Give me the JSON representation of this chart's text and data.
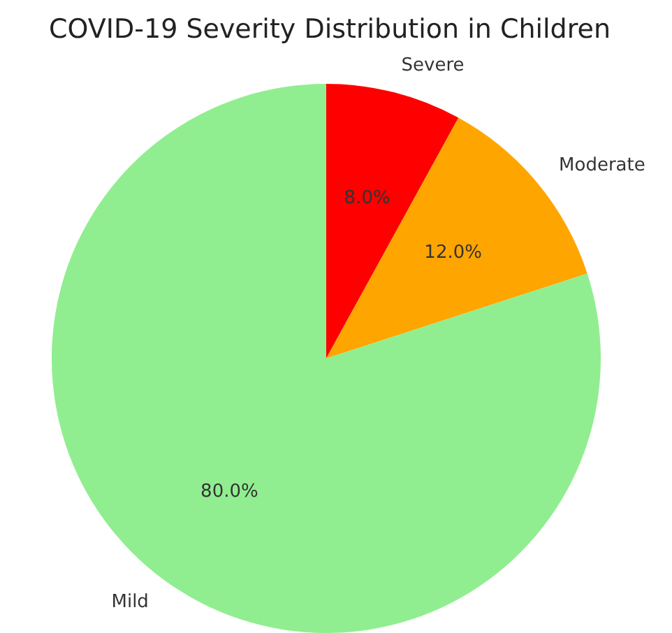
{
  "chart_data": {
    "type": "pie",
    "title": "COVID-19 Severity Distribution in Children",
    "categories": [
      "Severe",
      "Moderate",
      "Mild"
    ],
    "values": [
      8,
      12,
      80
    ],
    "colors": [
      "#ff0000",
      "#ffa500",
      "#90ee90"
    ],
    "value_labels": [
      "8.0%",
      "12.0%",
      "80.0%"
    ],
    "legend": false
  }
}
